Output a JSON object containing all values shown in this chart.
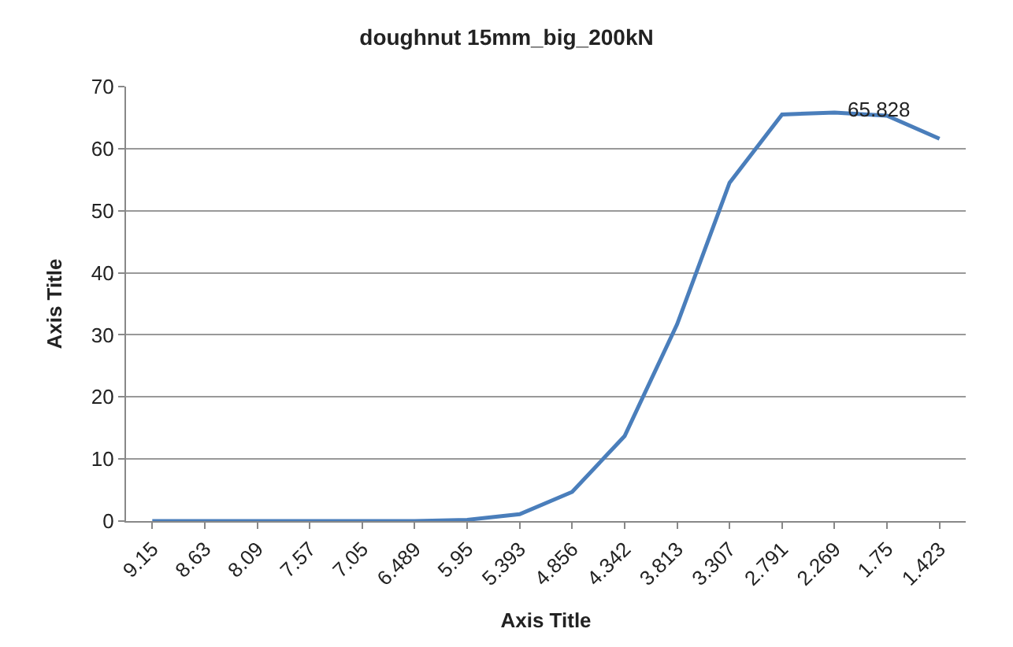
{
  "chart_data": {
    "type": "line",
    "title": "doughnut 15mm_big_200kN",
    "xlabel": "Axis Title",
    "ylabel": "Axis Title",
    "categories": [
      "9.15",
      "8.63",
      "8.09",
      "7.57",
      "7.05",
      "6.489",
      "5.95",
      "5.393",
      "4.856",
      "4.342",
      "3.813",
      "3.307",
      "2.791",
      "2.269",
      "1.75",
      "1.423"
    ],
    "series": [
      {
        "color": "#4a7ebb",
        "values": [
          0,
          0,
          0,
          0,
          0,
          0,
          0.2,
          1.1,
          4.7,
          13.7,
          31.7,
          54.5,
          65.5,
          65.828,
          65.3,
          61.6
        ]
      }
    ],
    "annotations": [
      {
        "text": "65.828",
        "x": "2.269",
        "y": 65.828
      }
    ],
    "ylim": [
      0,
      70
    ],
    "yticks": [
      0,
      10,
      20,
      30,
      40,
      50,
      60,
      70
    ],
    "grid": "y",
    "legend": false,
    "marker": "none",
    "line_style": "solid"
  }
}
